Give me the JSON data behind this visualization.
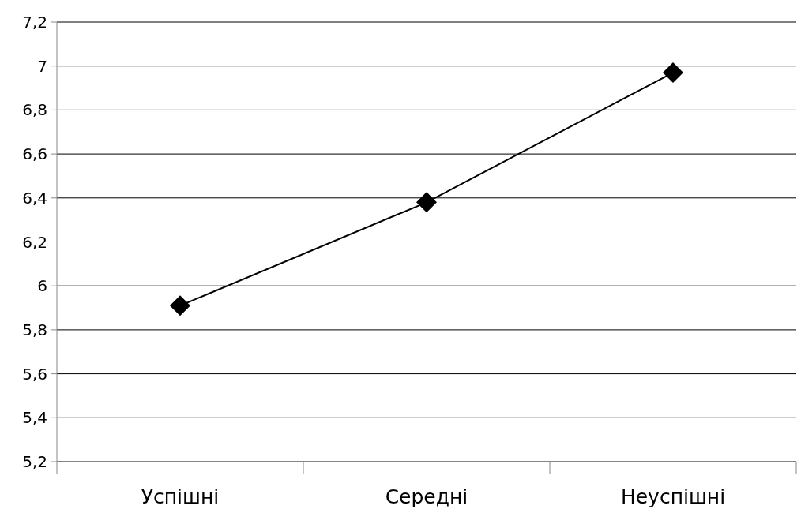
{
  "chart_data": {
    "type": "line",
    "categories": [
      "Успішні",
      "Середні",
      "Неуспішні"
    ],
    "series": [
      {
        "color": "#000000",
        "values": [
          5.91,
          6.38,
          6.97
        ]
      }
    ],
    "ylim": [
      5.2,
      7.2
    ],
    "yticks": [
      {
        "value": 5.2,
        "label": "5,2"
      },
      {
        "value": 5.4,
        "label": "5,4"
      },
      {
        "value": 5.6,
        "label": "5,6"
      },
      {
        "value": 5.8,
        "label": "5,8"
      },
      6,
      {
        "value": 6.2,
        "label": "6,2"
      },
      {
        "value": 6.4,
        "label": "6,4"
      },
      {
        "value": 6.6,
        "label": "6,6"
      },
      {
        "value": 6.8,
        "label": "6,8"
      },
      7,
      {
        "value": 7.2,
        "label": "7,2"
      }
    ],
    "grid": "y",
    "marker": "diamond",
    "line_style": "solid"
  }
}
